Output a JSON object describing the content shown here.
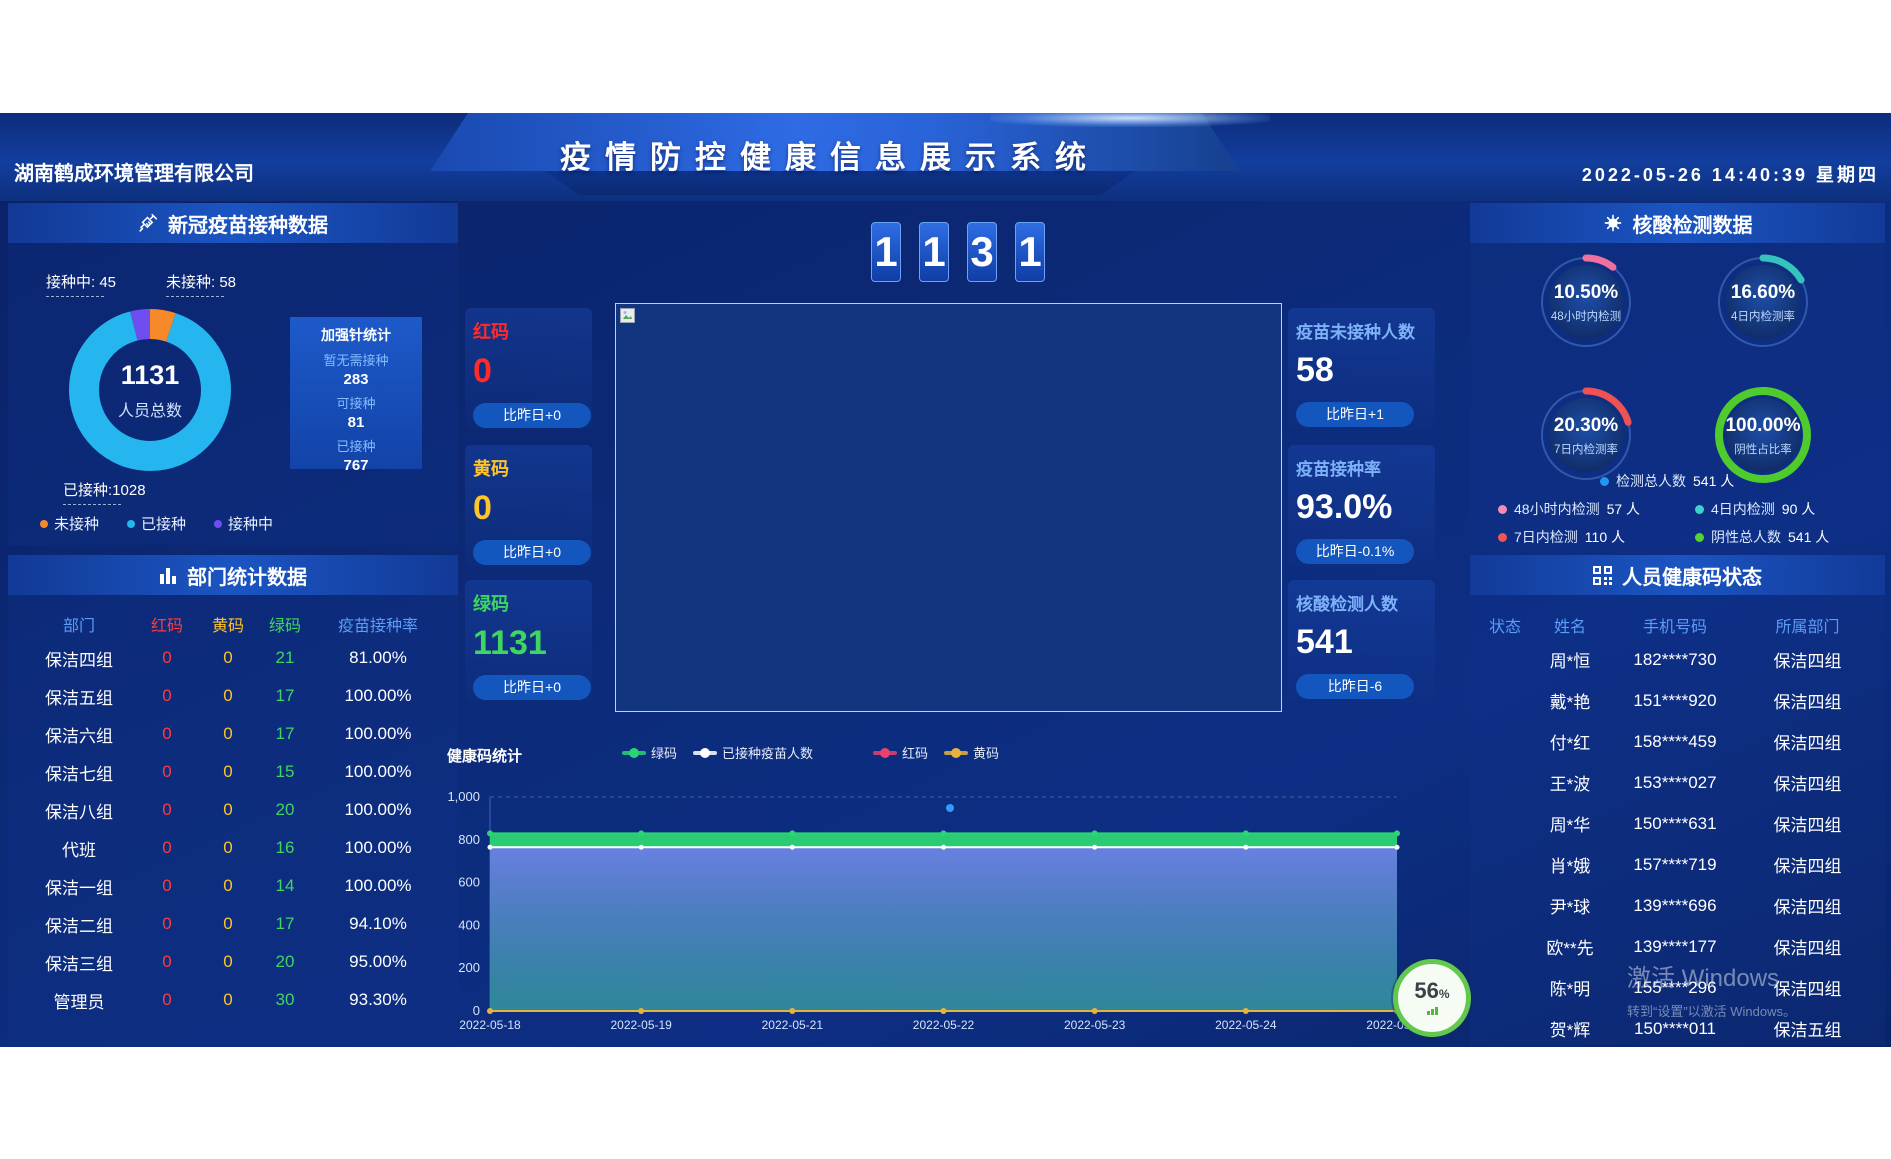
{
  "header": {
    "company": "湖南鹤成环境管理有限公司",
    "title": "疫情防控健康信息展示系统",
    "datetime": "2022-05-26 14:40:39 星期四"
  },
  "vaccine_panel": {
    "title": "新冠疫苗接种数据",
    "donut": {
      "total": "1131",
      "total_label": "人员总数",
      "callouts": {
        "vaccinating": "接种中: 45",
        "unvaccinated": "未接种: 58",
        "vaccinated": "已接种:1028"
      },
      "legend": [
        "未接种",
        "已接种",
        "接种中"
      ]
    },
    "booster": {
      "title": "加强针统计",
      "items": [
        {
          "label": "暂无需接种",
          "value": "283"
        },
        {
          "label": "可接种",
          "value": "81"
        },
        {
          "label": "已接种",
          "value": "767"
        }
      ]
    }
  },
  "department_panel": {
    "title": "部门统计数据",
    "columns": [
      "部门",
      "红码",
      "黄码",
      "绿码",
      "疫苗接种率"
    ],
    "rows": [
      [
        "保洁四组",
        "0",
        "0",
        "21",
        "81.00%"
      ],
      [
        "保洁五组",
        "0",
        "0",
        "17",
        "100.00%"
      ],
      [
        "保洁六组",
        "0",
        "0",
        "17",
        "100.00%"
      ],
      [
        "保洁七组",
        "0",
        "0",
        "15",
        "100.00%"
      ],
      [
        "保洁八组",
        "0",
        "0",
        "20",
        "100.00%"
      ],
      [
        "代班",
        "0",
        "0",
        "16",
        "100.00%"
      ],
      [
        "保洁一组",
        "0",
        "0",
        "14",
        "100.00%"
      ],
      [
        "保洁二组",
        "0",
        "0",
        "17",
        "94.10%"
      ],
      [
        "保洁三组",
        "0",
        "0",
        "20",
        "95.00%"
      ],
      [
        "管理员",
        "0",
        "0",
        "30",
        "93.30%"
      ]
    ]
  },
  "center": {
    "big_number": [
      "1",
      "1",
      "3",
      "1"
    ],
    "left_stats": [
      {
        "label": "红码",
        "value": "0",
        "delta": "比昨日+0"
      },
      {
        "label": "黄码",
        "value": "0",
        "delta": "比昨日+0"
      },
      {
        "label": "绿码",
        "value": "1131",
        "delta": "比昨日+0"
      }
    ],
    "right_stats": [
      {
        "label": "疫苗未接种人数",
        "value": "58",
        "delta": "比昨日+1"
      },
      {
        "label": "疫苗接种率",
        "value": "93.0%",
        "delta": "比昨日-0.1%"
      },
      {
        "label": "核酸检测人数",
        "value": "541",
        "delta": "比昨日-6"
      }
    ]
  },
  "nucleic_panel": {
    "title": "核酸检测数据",
    "legend": [
      {
        "label": "检测总人数",
        "value": "541 人",
        "color": "#2196f3"
      },
      {
        "label": "48小时内检测",
        "value": "57 人",
        "color": "#f48bb5"
      },
      {
        "label": "4日内检测",
        "value": "90 人",
        "color": "#3fd0c9"
      },
      {
        "label": "7日内检测",
        "value": "110 人",
        "color": "#f05455"
      },
      {
        "label": "阴性总人数",
        "value": "541 人",
        "color": "#58d02e"
      }
    ]
  },
  "healthcode_panel": {
    "title": "人员健康码状态",
    "columns": [
      "状态",
      "姓名",
      "手机号码",
      "所属部门"
    ],
    "rows": [
      {
        "name": "周*恒",
        "phone": "182****730",
        "dept": "保洁四组"
      },
      {
        "name": "戴*艳",
        "phone": "151****920",
        "dept": "保洁四组"
      },
      {
        "name": "付*红",
        "phone": "158****459",
        "dept": "保洁四组"
      },
      {
        "name": "王*波",
        "phone": "153****027",
        "dept": "保洁四组"
      },
      {
        "name": "周*华",
        "phone": "150****631",
        "dept": "保洁四组"
      },
      {
        "name": "肖*娥",
        "phone": "157****719",
        "dept": "保洁四组"
      },
      {
        "name": "尹*球",
        "phone": "139****696",
        "dept": "保洁四组"
      },
      {
        "name": "欧**先",
        "phone": "139****177",
        "dept": "保洁四组"
      },
      {
        "name": "陈*明",
        "phone": "155****296",
        "dept": "保洁四组"
      },
      {
        "name": "贺*辉",
        "phone": "150****011",
        "dept": "保洁五组"
      }
    ]
  },
  "chart_data": [
    {
      "type": "pie",
      "subtype": "donut",
      "title": "新冠疫苗接种数据",
      "total": 1131,
      "slices": [
        {
          "name": "未接种",
          "value": 58,
          "color": "#f68a2b"
        },
        {
          "name": "已接种",
          "value": 1028,
          "color": "#25b6f0"
        },
        {
          "name": "接种中",
          "value": 45,
          "color": "#6f4ef0"
        }
      ],
      "annotations": [
        "接种中: 45",
        "未接种: 58",
        "已接种:1028"
      ]
    },
    {
      "type": "gauge",
      "title": "核酸检测数据",
      "gauges": [
        {
          "display": "10.50%",
          "value": 10.5,
          "label": "48小时内检测",
          "color": "#ef6f9f"
        },
        {
          "display": "16.60%",
          "value": 16.6,
          "label": "4日内检测率",
          "color": "#35c3bc"
        },
        {
          "display": "20.30%",
          "value": 20.3,
          "label": "7日内检测率",
          "color": "#ee5253"
        },
        {
          "display": "100.00%",
          "value": 100,
          "label": "阴性占比率",
          "color": "#4fcb2d"
        }
      ]
    },
    {
      "type": "area",
      "title": "健康码统计",
      "x": [
        "2022-05-18",
        "2022-05-19",
        "2022-05-21",
        "2022-05-22",
        "2022-05-23",
        "2022-05-24",
        "2022-05-25"
      ],
      "series": [
        {
          "name": "绿码",
          "color": "#2bd573",
          "values": [
            830,
            830,
            830,
            830,
            830,
            830,
            830
          ]
        },
        {
          "name": "已接种疫苗人数",
          "color": "#ffffff",
          "values": [
            765,
            765,
            765,
            765,
            765,
            765,
            765
          ]
        },
        {
          "name": "红码",
          "color": "#e8416b",
          "values": [
            0,
            0,
            0,
            0,
            0,
            0,
            0
          ]
        },
        {
          "name": "黄码",
          "color": "#e8b33d",
          "values": [
            0,
            0,
            0,
            0,
            0,
            0,
            0
          ]
        }
      ],
      "ylim": [
        0,
        1000
      ],
      "ytick_labels": [
        "0",
        "200",
        "400",
        "600",
        "800",
        "1,000"
      ],
      "legend_position": "top",
      "grid": "dashed-top-only"
    }
  ],
  "overlay": {
    "gauge_value": "56",
    "gauge_unit": "%",
    "watermark_line1": "激活 Windows",
    "watermark_line2": "转到“设置”以激活 Windows。"
  },
  "palette": {
    "red": "#ff2a2a",
    "yellow": "#ffc427",
    "green": "#3fd561",
    "label_blue": "#7db2f8",
    "pill_bg": "#1356bd",
    "status_green": "#46d549",
    "panel_header": "#1b55c2",
    "accent": "#2e6be4"
  }
}
